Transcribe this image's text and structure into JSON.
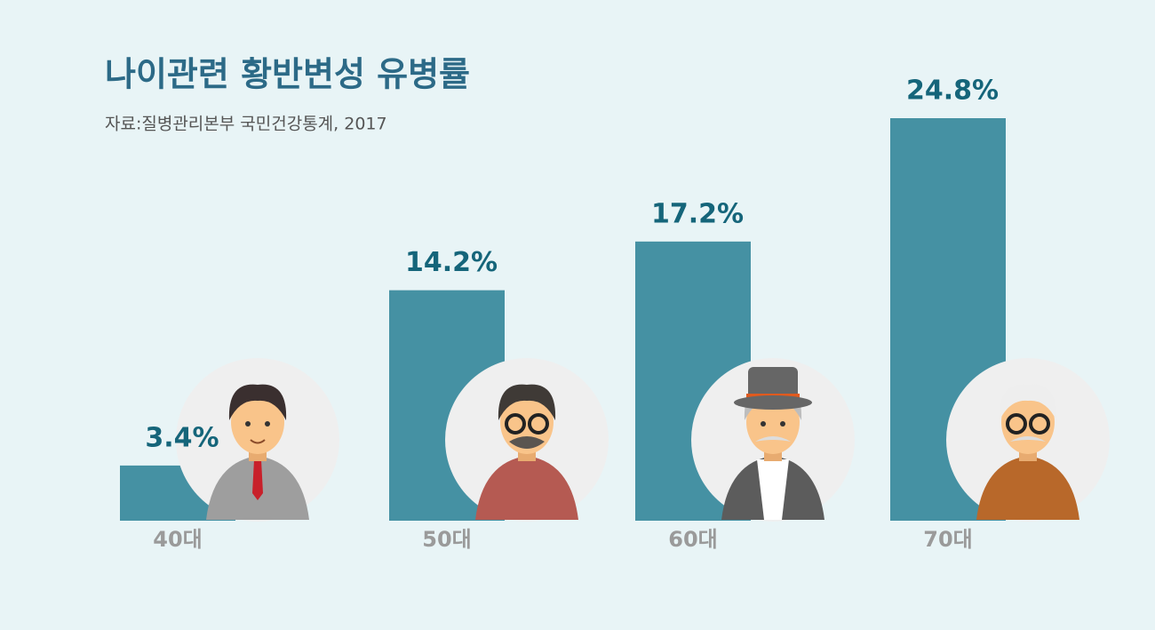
{
  "chart_data": {
    "type": "bar",
    "title": "나이관련 황반변성 유병률",
    "subtitle": "자료:질병관리본부 국민건강통계, 2017",
    "categories": [
      "40대",
      "50대",
      "60대",
      "70대"
    ],
    "values": [
      3.4,
      14.2,
      17.2,
      24.8
    ],
    "value_labels": [
      "3.4%",
      "14.2%",
      "17.2%",
      "24.8%"
    ],
    "color": "#4591a3"
  }
}
